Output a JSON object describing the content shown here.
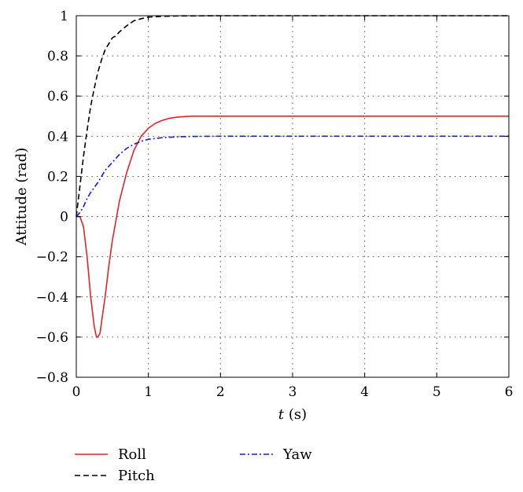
{
  "chart_data": {
    "type": "line",
    "title": "",
    "xlabel_italic": "t",
    "xlabel_rest": " (s)",
    "ylabel": "Attitude (rad)",
    "xlim": [
      0,
      6
    ],
    "ylim": [
      -0.8,
      1
    ],
    "xticks": [
      0,
      1,
      2,
      3,
      4,
      5,
      6
    ],
    "yticks": [
      -0.8,
      -0.6,
      -0.4,
      -0.2,
      0,
      0.2,
      0.4,
      0.6,
      0.8,
      1
    ],
    "grid": true,
    "legend_placement": "bottom",
    "series": [
      {
        "name": "Roll",
        "color": "#e8222b",
        "style": "solid",
        "x": [
          0,
          0.05,
          0.1,
          0.15,
          0.2,
          0.25,
          0.28,
          0.3,
          0.33,
          0.36,
          0.4,
          0.45,
          0.5,
          0.55,
          0.6,
          0.7,
          0.8,
          0.9,
          1.0,
          1.1,
          1.2,
          1.3,
          1.4,
          1.5,
          1.6,
          1.7,
          2.0,
          3.0,
          4.0,
          5.0,
          6.0
        ],
        "y": [
          0,
          0,
          -0.05,
          -0.2,
          -0.4,
          -0.55,
          -0.6,
          -0.6,
          -0.58,
          -0.5,
          -0.4,
          -0.25,
          -0.12,
          -0.02,
          0.08,
          0.22,
          0.33,
          0.4,
          0.44,
          0.465,
          0.48,
          0.49,
          0.495,
          0.498,
          0.5,
          0.5,
          0.5,
          0.5,
          0.5,
          0.5,
          0.5
        ]
      },
      {
        "name": "Pitch",
        "color": "#000000",
        "style": "dashed",
        "x": [
          0,
          0.05,
          0.1,
          0.15,
          0.2,
          0.25,
          0.3,
          0.35,
          0.4,
          0.45,
          0.5,
          0.55,
          0.6,
          0.7,
          0.8,
          0.9,
          1.0,
          1.2,
          1.4,
          2.0,
          3.0,
          4.0,
          5.0,
          6.0
        ],
        "y": [
          0,
          0.15,
          0.3,
          0.43,
          0.55,
          0.64,
          0.72,
          0.78,
          0.83,
          0.86,
          0.89,
          0.9,
          0.92,
          0.95,
          0.975,
          0.985,
          0.993,
          0.997,
          0.999,
          1.0,
          1.0,
          1.0,
          1.0,
          1.0
        ]
      },
      {
        "name": "Yaw",
        "color": "#1a1ae0",
        "style": "dashdot",
        "x": [
          0,
          0.05,
          0.1,
          0.15,
          0.2,
          0.3,
          0.4,
          0.5,
          0.6,
          0.7,
          0.8,
          0.9,
          1.0,
          1.2,
          1.4,
          1.6,
          2.0,
          3.0,
          4.0,
          5.0,
          6.0
        ],
        "y": [
          0,
          0.02,
          0.05,
          0.09,
          0.12,
          0.17,
          0.23,
          0.27,
          0.31,
          0.34,
          0.36,
          0.375,
          0.385,
          0.393,
          0.397,
          0.399,
          0.4,
          0.4,
          0.4,
          0.4,
          0.4
        ]
      }
    ]
  }
}
